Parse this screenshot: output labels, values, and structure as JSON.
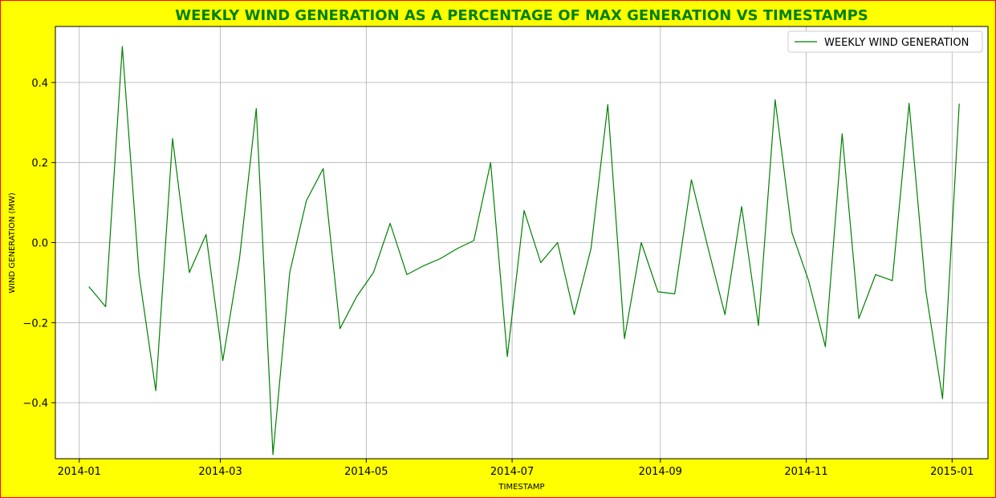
{
  "chart_data": {
    "type": "line",
    "title": "WEEKLY WIND GENERATION AS A PERCENTAGE OF MAX GENERATION VS TIMESTAMPS",
    "xlabel": "TIMESTAMP",
    "ylabel": "WIND GENERATION (MW)",
    "xlim": [
      "2013-12-22",
      "2015-01-16"
    ],
    "ylim": [
      -0.54,
      0.54
    ],
    "grid": true,
    "legend_position": "top-right",
    "x_ticks": [
      "2014-01",
      "2014-03",
      "2014-05",
      "2014-07",
      "2014-09",
      "2014-11",
      "2015-01"
    ],
    "y_ticks": [
      -0.4,
      -0.2,
      0.0,
      0.2,
      0.4
    ],
    "y_tick_labels": [
      "−0.4",
      "−0.2",
      "0.0",
      "0.2",
      "0.4"
    ],
    "colors": {
      "line": "#008000",
      "title": "#008000",
      "background": "#ffff00",
      "border": "#ff0000",
      "plot_background": "#ffffff",
      "grid": "#b0b0b0"
    },
    "series": [
      {
        "name": "WEEKLY WIND GENERATION",
        "x": [
          "2014-01-05",
          "2014-01-12",
          "2014-01-19",
          "2014-01-26",
          "2014-02-02",
          "2014-02-09",
          "2014-02-16",
          "2014-02-23",
          "2014-03-02",
          "2014-03-09",
          "2014-03-16",
          "2014-03-23",
          "2014-03-30",
          "2014-04-06",
          "2014-04-13",
          "2014-04-20",
          "2014-04-27",
          "2014-05-04",
          "2014-05-11",
          "2014-05-18",
          "2014-05-25",
          "2014-06-01",
          "2014-06-08",
          "2014-06-15",
          "2014-06-22",
          "2014-06-29",
          "2014-07-06",
          "2014-07-13",
          "2014-07-20",
          "2014-07-27",
          "2014-08-03",
          "2014-08-10",
          "2014-08-17",
          "2014-08-24",
          "2014-08-31",
          "2014-09-07",
          "2014-09-14",
          "2014-09-21",
          "2014-09-28",
          "2014-10-05",
          "2014-10-12",
          "2014-10-19",
          "2014-10-26",
          "2014-11-02",
          "2014-11-09",
          "2014-11-16",
          "2014-11-23",
          "2014-11-30",
          "2014-12-07",
          "2014-12-14",
          "2014-12-21",
          "2014-12-28",
          "2015-01-04"
        ],
        "values": [
          -0.11,
          -0.16,
          0.49,
          -0.08,
          -0.37,
          0.26,
          -0.075,
          0.02,
          -0.295,
          -0.04,
          0.335,
          -0.53,
          -0.075,
          0.105,
          0.185,
          -0.215,
          -0.135,
          -0.075,
          0.048,
          -0.08,
          -0.058,
          -0.04,
          -0.015,
          0.005,
          0.2,
          -0.285,
          0.08,
          -0.05,
          0.0,
          -0.18,
          -0.015,
          0.345,
          -0.24,
          0.0,
          -0.123,
          -0.128,
          0.157,
          -0.015,
          -0.18,
          0.09,
          -0.207,
          0.357,
          0.025,
          -0.095,
          -0.26,
          0.272,
          -0.19,
          -0.08,
          -0.095,
          0.348,
          -0.12,
          -0.39,
          0.347
        ]
      }
    ]
  }
}
